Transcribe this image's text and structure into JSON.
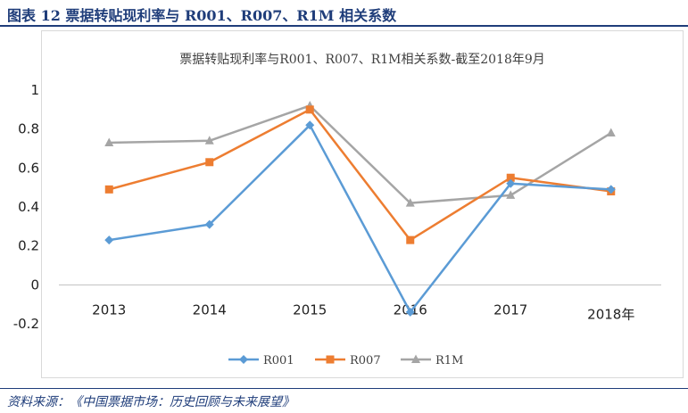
{
  "figure": {
    "title": "图表 12   票据转贴现利率与 R001、R007、R1M 相关系数",
    "source": "资料来源：《中国票据市场：历史回顾与未来展望》"
  },
  "colors": {
    "header": "#1f3d7a",
    "R001": "#5b9bd5",
    "R007": "#ed7d31",
    "R1M": "#a5a5a5"
  },
  "chart_data": {
    "type": "line",
    "title": "票据转贴现利率与R001、R007、R1M相关系数-截至2018年9月",
    "categories": [
      "2013",
      "2014",
      "2015",
      "2016",
      "2017",
      "2018年"
    ],
    "ylim": [
      -0.2,
      1
    ],
    "yticks": [
      -0.2,
      0,
      0.2,
      0.4,
      0.6,
      0.8,
      1
    ],
    "ytick_labels": [
      "-0.2",
      "0",
      "0.2",
      "0.4",
      "0.6",
      "0.8",
      "1"
    ],
    "grid": false,
    "legend": "bottom",
    "series": [
      {
        "name": "R001",
        "marker": "diamond",
        "color": "#5b9bd5",
        "values": [
          0.23,
          0.31,
          0.82,
          -0.14,
          0.52,
          0.49
        ]
      },
      {
        "name": "R007",
        "marker": "square",
        "color": "#ed7d31",
        "values": [
          0.49,
          0.63,
          0.9,
          0.23,
          0.55,
          0.48
        ]
      },
      {
        "name": "R1M",
        "marker": "triangle",
        "color": "#a5a5a5",
        "values": [
          0.73,
          0.74,
          0.92,
          0.42,
          0.46,
          0.78
        ]
      }
    ]
  }
}
